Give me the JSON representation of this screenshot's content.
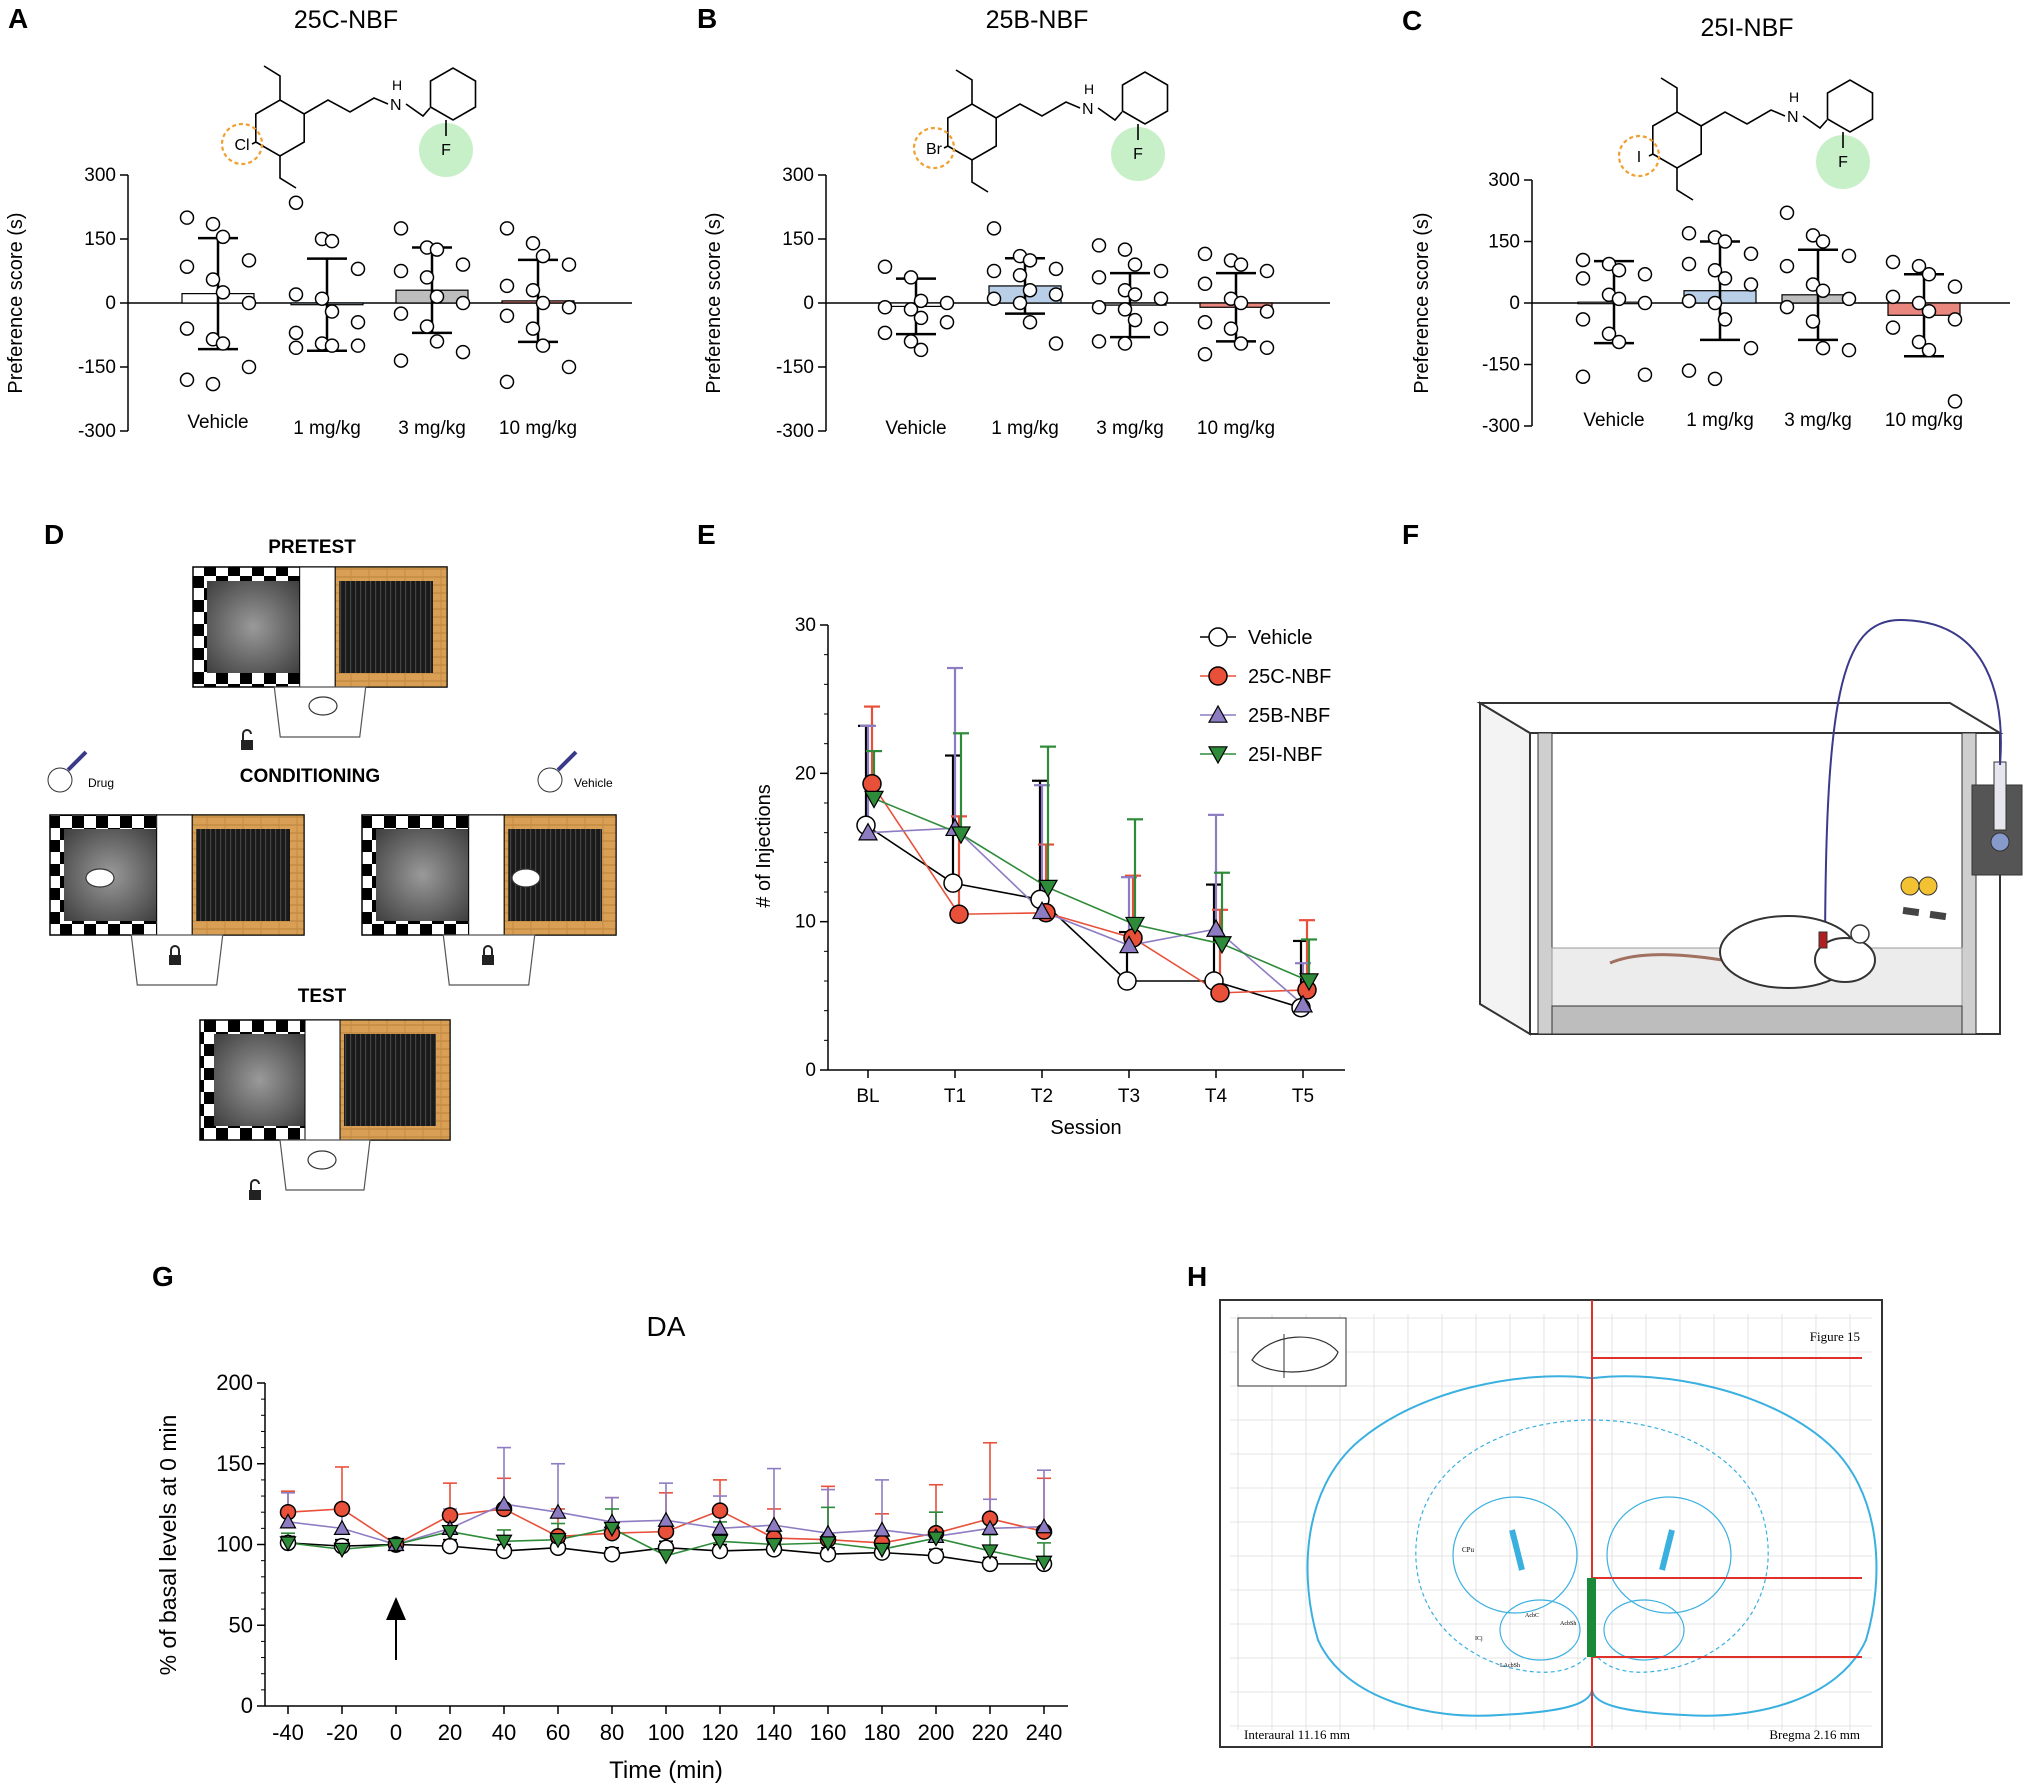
{
  "colors": {
    "vehicle": "#ffffff",
    "c25": "#e8503a",
    "b25": "#8e7cc3",
    "i25": "#2e8b3a",
    "bar_vehicle": "#ffffff",
    "bar_1": "#b9cfe8",
    "bar_3": "#bdbdbd",
    "bar_10": "#e9877f",
    "halogen_ring": "#f0a030",
    "fluorine_fill": "#c8f0c8",
    "atlas_line": "#3ab0e0",
    "atlas_red": "#e0302a",
    "atlas_green": "#1a8a3a"
  },
  "panels": {
    "A": {
      "letter": "A",
      "title": "25C-NBF",
      "halogen": "Cl",
      "fluorine": "F",
      "amine": "N",
      "amine_h": "H"
    },
    "B": {
      "letter": "B",
      "title": "25B-NBF",
      "halogen": "Br",
      "fluorine": "F",
      "amine": "N",
      "amine_h": "H"
    },
    "C": {
      "letter": "C",
      "title": "25I-NBF",
      "halogen": "I",
      "fluorine": "F",
      "amine": "N",
      "amine_h": "H"
    },
    "D": {
      "letter": "D",
      "pretest": "PRETEST",
      "conditioning": "CONDITIONING",
      "test": "TEST",
      "drug_label": "Drug",
      "vehicle_label": "Vehicle"
    },
    "E": {
      "letter": "E"
    },
    "F": {
      "letter": "F"
    },
    "G": {
      "letter": "G"
    },
    "H": {
      "letter": "H",
      "figure_label": "Figure 15",
      "interaural": "Interaural 11.16 mm",
      "bregma": "Bregma 2.16 mm",
      "region_cpu": "CPu",
      "region_acbc": "AcbC",
      "region_acbsh": "AcbSh",
      "region_lacbsh": "LAcbSh",
      "region_ica": "ICj"
    }
  },
  "chart_data": [
    {
      "id": "A",
      "type": "bar",
      "title": "25C-NBF",
      "ylabel": "Preference score (s)",
      "ylim": [
        -300,
        300
      ],
      "yticks": [
        300,
        150,
        0,
        -150,
        -300
      ],
      "ytick_labels": [
        "300",
        "150",
        "0",
        "-150",
        "-300"
      ],
      "categories": [
        "Vehicle",
        "1 mg/kg",
        "3 mg/kg",
        "10 mg/kg"
      ],
      "means": [
        22,
        -4,
        30,
        5
      ],
      "sd": [
        130,
        108,
        100,
        96
      ],
      "points": [
        [
          200,
          185,
          155,
          100,
          85,
          55,
          25,
          0,
          -60,
          -85,
          -95,
          -150,
          -180,
          -190
        ],
        [
          235,
          150,
          145,
          80,
          20,
          10,
          -20,
          -45,
          -70,
          -95,
          -100,
          -100,
          -105
        ],
        [
          175,
          130,
          125,
          90,
          75,
          60,
          15,
          0,
          -25,
          -55,
          -90,
          -115,
          -135
        ],
        [
          175,
          140,
          110,
          90,
          40,
          30,
          0,
          -10,
          -30,
          -60,
          -100,
          -150,
          -185
        ]
      ]
    },
    {
      "id": "B",
      "type": "bar",
      "title": "25B-NBF",
      "ylabel": "Preference score (s)",
      "ylim": [
        -300,
        300
      ],
      "yticks": [
        300,
        150,
        0,
        -150,
        -300
      ],
      "ytick_labels": [
        "300",
        "150",
        "0",
        "-150",
        "-300"
      ],
      "categories": [
        "Vehicle",
        "1 mg/kg",
        "3 mg/kg",
        "10 mg/kg"
      ],
      "means": [
        -8,
        40,
        -5,
        -10
      ],
      "sd": [
        65,
        65,
        75,
        80
      ],
      "points": [
        [
          85,
          60,
          5,
          0,
          -10,
          -15,
          -35,
          -45,
          -70,
          -90,
          -110
        ],
        [
          175,
          110,
          100,
          80,
          75,
          65,
          30,
          20,
          10,
          0,
          -45,
          -95
        ],
        [
          135,
          125,
          90,
          75,
          60,
          30,
          20,
          10,
          -10,
          -15,
          -40,
          -60,
          -90,
          -95
        ],
        [
          115,
          100,
          90,
          75,
          45,
          10,
          0,
          -20,
          -45,
          -60,
          -95,
          -105,
          -120
        ]
      ]
    },
    {
      "id": "C",
      "type": "bar",
      "title": "25I-NBF",
      "ylabel": "Preference score (s)",
      "ylim": [
        -300,
        300
      ],
      "yticks": [
        300,
        150,
        0,
        -150,
        -300
      ],
      "ytick_labels": [
        "300",
        "150",
        "0",
        "-150",
        "-300"
      ],
      "categories": [
        "Vehicle",
        "1 mg/kg",
        "3 mg/kg",
        "10 mg/kg"
      ],
      "means": [
        2,
        30,
        20,
        -30
      ],
      "sd": [
        100,
        120,
        110,
        100
      ],
      "points": [
        [
          105,
          95,
          80,
          70,
          60,
          20,
          10,
          0,
          -40,
          -75,
          -95,
          -175,
          -180
        ],
        [
          170,
          160,
          150,
          120,
          95,
          80,
          60,
          45,
          5,
          0,
          -40,
          -110,
          -165,
          -185
        ],
        [
          220,
          165,
          150,
          115,
          90,
          45,
          30,
          10,
          -10,
          -45,
          -110,
          -115
        ],
        [
          100,
          90,
          70,
          40,
          15,
          0,
          -20,
          -40,
          -60,
          -95,
          -115,
          -240
        ]
      ]
    },
    {
      "id": "E",
      "type": "line",
      "title": "",
      "xlabel": "Session",
      "ylabel": "# of Injections",
      "ylim": [
        0,
        30
      ],
      "yticks": [
        0,
        10,
        20,
        30
      ],
      "ytick_labels": [
        "0",
        "10",
        "20",
        "30"
      ],
      "x": [
        "BL",
        "T1",
        "T2",
        "T3",
        "T4",
        "T5"
      ],
      "legend": "top-right",
      "series": [
        {
          "name": "Vehicle",
          "marker": "circle",
          "values": [
            16.5,
            12.6,
            11.5,
            6.0,
            6.0,
            4.2
          ],
          "err": [
            6.7,
            8.6,
            8.0,
            3.3,
            6.5,
            4.5
          ]
        },
        {
          "name": "25C-NBF",
          "marker": "circle",
          "values": [
            19.3,
            10.5,
            10.6,
            8.9,
            5.2,
            5.4
          ],
          "err": [
            5.2,
            6.6,
            4.6,
            4.2,
            5.6,
            4.7
          ]
        },
        {
          "name": "25B-NBF",
          "marker": "triangle-up",
          "values": [
            16.0,
            16.3,
            10.7,
            8.4,
            9.5,
            4.4
          ],
          "err": [
            7.2,
            10.8,
            8.5,
            4.6,
            7.7,
            2.8
          ]
        },
        {
          "name": "25I-NBF",
          "marker": "triangle-down",
          "values": [
            18.3,
            15.9,
            12.3,
            9.8,
            8.5,
            6.0
          ],
          "err": [
            3.2,
            6.8,
            9.5,
            7.1,
            4.8,
            2.8
          ]
        }
      ]
    },
    {
      "id": "G",
      "type": "line",
      "title": "DA",
      "xlabel": "Time (min)",
      "ylabel": "% of basal levels at 0 min",
      "ylim": [
        0,
        200
      ],
      "yticks": [
        0,
        50,
        100,
        150,
        200
      ],
      "ytick_labels": [
        "0",
        "50",
        "100",
        "150",
        "200"
      ],
      "x": [
        -40,
        -20,
        0,
        20,
        40,
        60,
        80,
        100,
        120,
        140,
        160,
        180,
        200,
        220,
        240
      ],
      "x_labels": [
        "-40",
        "-20",
        "0",
        "20",
        "40",
        "60",
        "80",
        "100",
        "120",
        "140",
        "160",
        "180",
        "200",
        "220",
        "240"
      ],
      "annotation": "arrow at 0 min",
      "series": [
        {
          "name": "Vehicle",
          "marker": "circle",
          "values": [
            101,
            99,
            100,
            99,
            96,
            98,
            94,
            98,
            96,
            97,
            94,
            95,
            93,
            88,
            88
          ],
          "err": [
            4,
            4,
            2,
            4,
            4,
            4,
            4,
            4,
            4,
            4,
            4,
            4,
            4,
            4,
            4
          ]
        },
        {
          "name": "25C-NBF",
          "marker": "circle",
          "values": [
            120,
            122,
            100,
            118,
            122,
            105,
            107,
            108,
            121,
            104,
            103,
            101,
            107,
            116,
            108
          ],
          "err": [
            13,
            26,
            2,
            20,
            19,
            17,
            22,
            24,
            19,
            18,
            33,
            18,
            30,
            47,
            33
          ]
        },
        {
          "name": "25B-NBF",
          "marker": "triangle-up",
          "values": [
            114,
            110,
            100,
            110,
            125,
            120,
            114,
            115,
            110,
            112,
            107,
            109,
            105,
            110,
            111
          ],
          "err": [
            18,
            10,
            2,
            12,
            35,
            30,
            15,
            23,
            20,
            35,
            27,
            31,
            15,
            18,
            35
          ]
        },
        {
          "name": "25I-NBF",
          "marker": "triangle-down",
          "values": [
            101,
            97,
            100,
            108,
            102,
            103,
            110,
            93,
            102,
            100,
            101,
            97,
            104,
            96,
            89
          ],
          "err": [
            6,
            5,
            2,
            8,
            7,
            10,
            12,
            5,
            12,
            8,
            22,
            8,
            16,
            10,
            12
          ]
        }
      ]
    }
  ]
}
